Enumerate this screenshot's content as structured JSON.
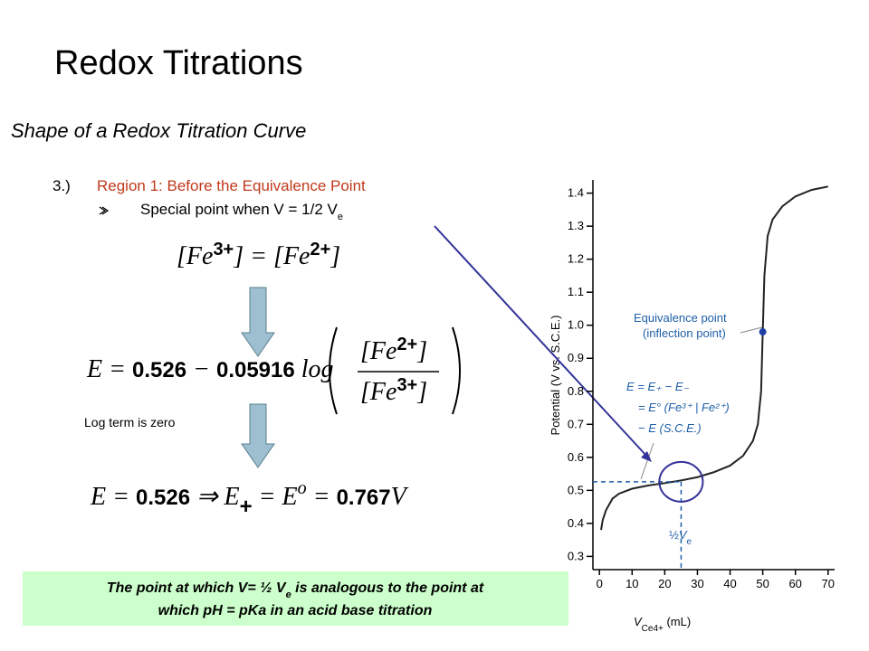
{
  "slide": {
    "title": "Redox Titrations",
    "subtitle": "Shape of a Redox Titration Curve",
    "item_number": "3.)",
    "item_text": "Region 1: Before the Equivalence Point",
    "bullet": [
      "Special point when V = 1/2 V",
      "e"
    ],
    "eq1": [
      "[",
      "Fe",
      "3+",
      "] = [",
      "Fe",
      "2+",
      "]"
    ],
    "eq2": {
      "lead": [
        "E = ",
        "0.526",
        " − ",
        "0.05916",
        " log"
      ],
      "numerator": [
        "[Fe",
        "2+",
        "]"
      ],
      "denominator": [
        "[Fe",
        "3+",
        "]"
      ]
    },
    "log_note": "Log term is zero",
    "eq3": [
      "E = ",
      "0.526",
      " ⇒ E",
      "+",
      " = E",
      "o",
      " = ",
      "0.767",
      "V"
    ],
    "note": {
      "line1": [
        "The point at which V= ½ V",
        "e",
        " is analogous to the point at"
      ],
      "line2": "which pH = pKa in an acid base titration"
    }
  },
  "chart_data": {
    "type": "line",
    "ylabel": "Potential (V vs. S.C.E.)",
    "xlabel": [
      "V",
      "Ce4+",
      " (mL)"
    ],
    "xlim": [
      -2,
      72
    ],
    "xticks": [
      0,
      10,
      20,
      30,
      40,
      50,
      60,
      70
    ],
    "ylim": [
      0.26,
      1.44
    ],
    "yticks": [
      0.3,
      0.4,
      0.5,
      0.6,
      0.7,
      0.8,
      0.9,
      {
        "value": 1,
        "label": "1.0"
      },
      1.1,
      1.2,
      1.3,
      1.4
    ],
    "series": [
      {
        "color": "#222222",
        "x": [
          0.5,
          1,
          2,
          4,
          6,
          10,
          15,
          20,
          25,
          30,
          35,
          40,
          44,
          47,
          48.5,
          49.5,
          50,
          50.5,
          51.5,
          53,
          56,
          60,
          65,
          70
        ],
        "values": [
          0.38,
          0.41,
          0.44,
          0.475,
          0.49,
          0.505,
          0.515,
          0.522,
          0.53,
          0.54,
          0.555,
          0.575,
          0.605,
          0.65,
          0.7,
          0.8,
          0.98,
          1.15,
          1.27,
          1.32,
          1.36,
          1.39,
          1.41,
          1.42
        ]
      }
    ],
    "equivalence_point": {
      "x": 50,
      "y": 0.98,
      "label": "Equivalence point",
      "label2": "(inflection point)"
    },
    "half_point": {
      "x": 25,
      "y": 0.526,
      "fraction": "½",
      "symbol": "V",
      "sub": "e"
    },
    "formula": [
      "E = E₊ − E₋",
      "= E° (Fe³⁺ | Fe²⁺)",
      "− E (S.C.E.)"
    ]
  }
}
